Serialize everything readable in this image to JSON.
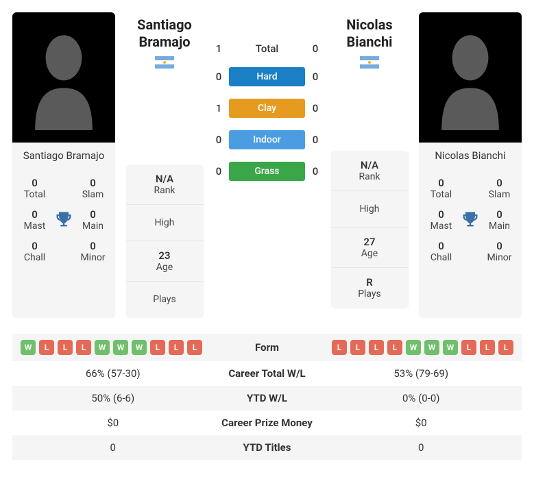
{
  "colors": {
    "hard": "#1a7fc4",
    "clay": "#e59b1f",
    "indoor": "#4a9de0",
    "grass": "#3aa648",
    "win": "#6fbf6b",
    "loss": "#e46a57",
    "trophy": "#3b6fa8",
    "card_bg": "#f5f5f5"
  },
  "flag_ar": {
    "stripe": "#74acdf",
    "sun": "#f6b40e"
  },
  "p1": {
    "name": "Santiago Bramajo",
    "first": "Santiago",
    "last": "Bramajo",
    "titles": {
      "total": {
        "v": "0",
        "l": "Total"
      },
      "slam": {
        "v": "0",
        "l": "Slam"
      },
      "mast": {
        "v": "0",
        "l": "Mast"
      },
      "main": {
        "v": "0",
        "l": "Main"
      },
      "chall": {
        "v": "0",
        "l": "Chall"
      },
      "minor": {
        "v": "0",
        "l": "Minor"
      }
    },
    "info": {
      "rank": {
        "v": "N/A",
        "l": "Rank"
      },
      "high": {
        "v": "",
        "l": "High"
      },
      "age": {
        "v": "23",
        "l": "Age"
      },
      "plays": {
        "v": "",
        "l": "Plays"
      }
    },
    "form": [
      "W",
      "L",
      "L",
      "L",
      "W",
      "W",
      "W",
      "L",
      "L",
      "L"
    ]
  },
  "p2": {
    "name": "Nicolas Bianchi",
    "first": "Nicolas",
    "last": "Bianchi",
    "titles": {
      "total": {
        "v": "0",
        "l": "Total"
      },
      "slam": {
        "v": "0",
        "l": "Slam"
      },
      "mast": {
        "v": "0",
        "l": "Mast"
      },
      "main": {
        "v": "0",
        "l": "Main"
      },
      "chall": {
        "v": "0",
        "l": "Chall"
      },
      "minor": {
        "v": "0",
        "l": "Minor"
      }
    },
    "info": {
      "rank": {
        "v": "N/A",
        "l": "Rank"
      },
      "high": {
        "v": "",
        "l": "High"
      },
      "age": {
        "v": "27",
        "l": "Age"
      },
      "plays": {
        "v": "R",
        "l": "Plays"
      }
    },
    "form": [
      "L",
      "L",
      "L",
      "L",
      "W",
      "W",
      "W",
      "L",
      "L",
      "L"
    ]
  },
  "h2h": {
    "total": {
      "l": "Total",
      "p1": "1",
      "p2": "0"
    },
    "hard": {
      "l": "Hard",
      "p1": "0",
      "p2": "0"
    },
    "clay": {
      "l": "Clay",
      "p1": "1",
      "p2": "0"
    },
    "indoor": {
      "l": "Indoor",
      "p1": "0",
      "p2": "0"
    },
    "grass": {
      "l": "Grass",
      "p1": "0",
      "p2": "0"
    }
  },
  "comp": {
    "form": "Form",
    "career_wl": {
      "l": "Career Total W/L",
      "p1": "66% (57-30)",
      "p2": "53% (79-69)"
    },
    "ytd_wl": {
      "l": "YTD W/L",
      "p1": "50% (6-6)",
      "p2": "0% (0-0)"
    },
    "prize": {
      "l": "Career Prize Money",
      "p1": "$0",
      "p2": "$0"
    },
    "ytd_titles": {
      "l": "YTD Titles",
      "p1": "0",
      "p2": "0"
    }
  }
}
